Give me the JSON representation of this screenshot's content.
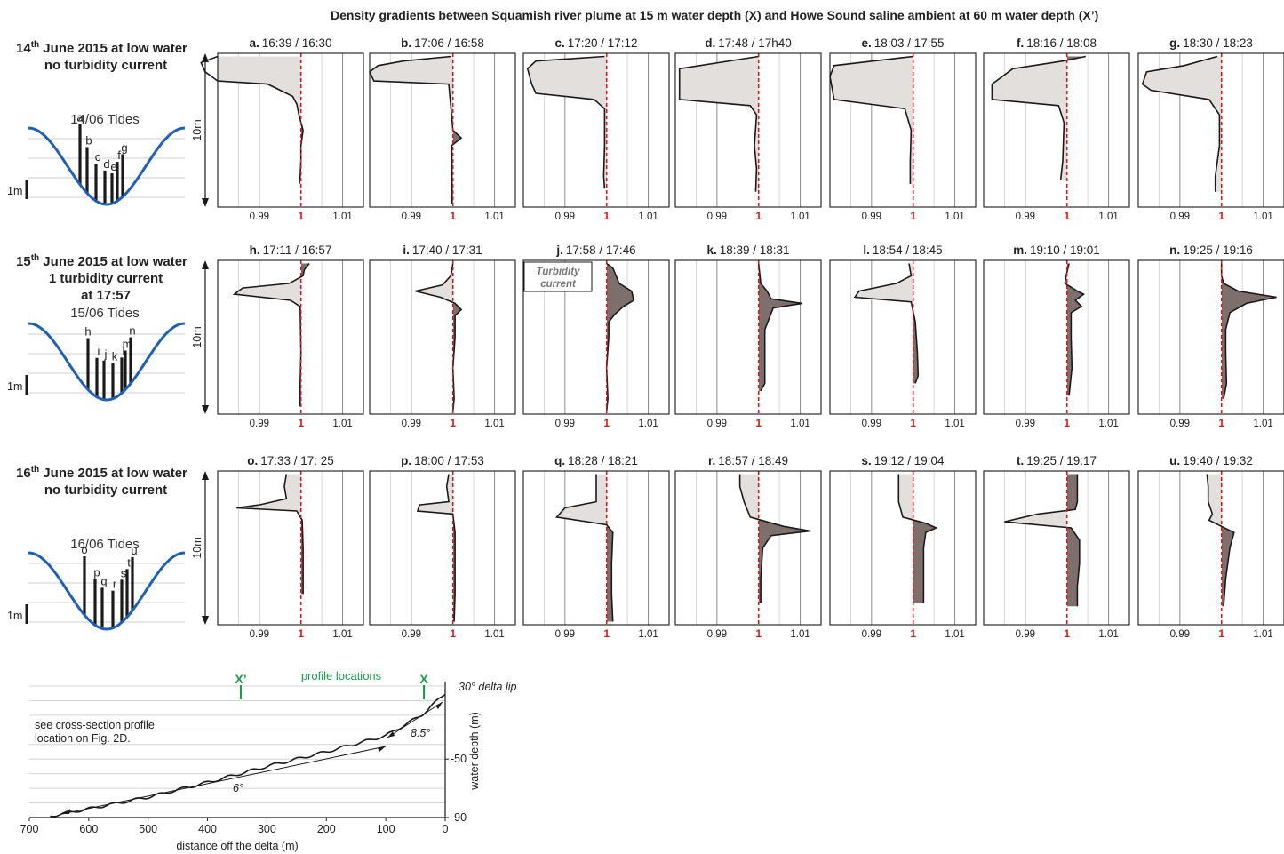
{
  "figure_title": "Density gradients between Squamish river plume at 15 m water depth (X) and Howe Sound saline ambient at 60 m water depth (X’)",
  "rows": [
    {
      "title_day": "14",
      "title_sup": "th",
      "title_rest": " June 2015 at low water",
      "subtitle_lines": [
        "no turbidity current"
      ],
      "tide_label": "14/06 Tides",
      "scale_label": "1m",
      "bar_letters": [
        "a",
        "b",
        "c",
        "d",
        "e",
        "f",
        "g"
      ]
    },
    {
      "title_day": "15",
      "title_sup": "th",
      "title_rest": " June 2015 at low water",
      "subtitle_lines": [
        "1 turbidity current",
        "at 17:57"
      ],
      "tide_label": "15/06 Tides",
      "scale_label": "1m",
      "bar_letters": [
        "h",
        "i",
        "j",
        "k",
        "l",
        "m",
        "n"
      ]
    },
    {
      "title_day": "16",
      "title_sup": "th",
      "title_rest": " June 2015 at low water",
      "subtitle_lines": [
        "no turbidity current"
      ],
      "tide_label": "16/06 Tides",
      "scale_label": "1m",
      "bar_letters": [
        "o",
        "p",
        "q",
        "r",
        "s",
        "t",
        "u"
      ]
    }
  ],
  "depth_scale_label": "10m",
  "turbidity_label_line1": "Turbidity",
  "turbidity_label_line2": "current",
  "colors": {
    "tide_curve": "#1f5fb4",
    "reference_line": "#d21b1b",
    "lighter_fill": "#e3dfdc",
    "denser_fill": "#7d706c",
    "profile_line": "#1a1a1a",
    "green": "#1e9a4a"
  },
  "cross_section": {
    "note_lines": [
      "see cross-section profile",
      "location on Fig. 2D."
    ],
    "profile_locations_label": "profile locations",
    "x_marker": "X",
    "xprime_marker": "X’",
    "delta_lip_label": "30° delta lip",
    "slope_labels": [
      "8.5°",
      "6°"
    ],
    "xlabel": "distance off the delta (m)",
    "ylabel": "water depth (m)"
  },
  "chart_data": [
    {
      "type": "line",
      "description_of_panels": "21 density-ratio profiles (ratio X/X'), x = density ratio, y = depth",
      "xlim": [
        0.98,
        1.015
      ],
      "x_ticks": [
        0.99,
        1,
        1.01
      ],
      "x_tick_labels": [
        "0.99",
        "1",
        "1.01"
      ],
      "reference_x": 1,
      "panels": [
        {
          "label": "a.",
          "time": "16:39 / 16:30"
        },
        {
          "label": "b.",
          "time": "17:06 / 16:58"
        },
        {
          "label": "c.",
          "time": "17:20 / 17:12"
        },
        {
          "label": "d.",
          "time": "17:48 / 17h40"
        },
        {
          "label": "e.",
          "time": "18:03 / 17:55"
        },
        {
          "label": "f.",
          "time": "18:16 / 18:08"
        },
        {
          "label": "g.",
          "time": "18:30 / 18:23"
        },
        {
          "label": "h.",
          "time": "17:11 / 16:57"
        },
        {
          "label": "i.",
          "time": "17:40 / 17:31"
        },
        {
          "label": "j.",
          "time": "17:58 / 17:46"
        },
        {
          "label": "k.",
          "time": "18:39 / 18:31"
        },
        {
          "label": "l.",
          "time": "18:54 / 18:45"
        },
        {
          "label": "m.",
          "time": "19:10 / 19:01"
        },
        {
          "label": "n.",
          "time": "19:25 / 19:16"
        },
        {
          "label": "o.",
          "time": "17:33 / 17: 25"
        },
        {
          "label": "p.",
          "time": "18:00 / 17:53"
        },
        {
          "label": "q.",
          "time": "18:28 / 18:21"
        },
        {
          "label": "r.",
          "time": "18:57 / 18:49"
        },
        {
          "label": "s.",
          "time": "19:12 / 19:04"
        },
        {
          "label": "t.",
          "time": "19:25 / 19:17"
        },
        {
          "label": "u.",
          "time": "19:40 / 19:32"
        }
      ]
    },
    {
      "type": "line",
      "title": "",
      "xlabel": "distance off the delta (m)",
      "ylabel": "water depth (m)",
      "x_ticks": [
        700,
        600,
        500,
        400,
        300,
        200,
        100,
        0
      ],
      "y_ticks": [
        -50,
        -90
      ],
      "xlim": [
        700,
        0
      ],
      "ylim": [
        -90,
        0
      ],
      "x": [
        665,
        600,
        500,
        400,
        300,
        200,
        100,
        40,
        0
      ],
      "y": [
        -89,
        -84,
        -76,
        -66,
        -55,
        -45,
        -34,
        -20,
        -5
      ]
    }
  ]
}
